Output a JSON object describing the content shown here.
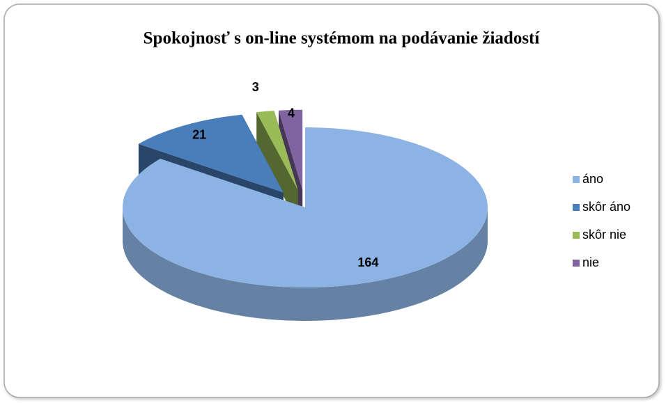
{
  "chart_data": {
    "type": "pie",
    "title": "Spokojnosť s on-line systémom na podávanie žiadostí",
    "categories": [
      "áno",
      "skôr áno",
      "skôr nie",
      "nie"
    ],
    "values": [
      164,
      21,
      3,
      4
    ],
    "colors": [
      "#8cb3e3",
      "#4a7ebb",
      "#9bbb59",
      "#8064a2"
    ],
    "legend": "right"
  }
}
